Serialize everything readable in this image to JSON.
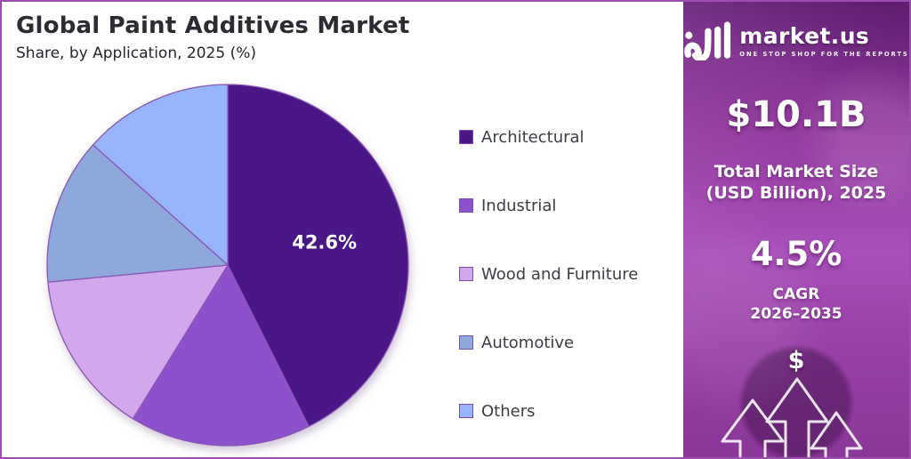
{
  "header": {
    "title": "Global Paint Additives Market",
    "subtitle": "Share, by Application, 2025 (%)"
  },
  "chart_data": {
    "type": "pie",
    "title": "Global Paint Additives Market Share, by Application, 2025 (%)",
    "unit": "%",
    "legend_position": "right",
    "slices": [
      {
        "label": "Architectural",
        "value": 42.6,
        "color": "#4A1787",
        "data_label": "42.6%"
      },
      {
        "label": "Industrial",
        "value": 16.2,
        "color": "#8B52CC",
        "data_label": ""
      },
      {
        "label": "Wood and Furniture",
        "value": 14.7,
        "color": "#D1A8EC",
        "data_label": ""
      },
      {
        "label": "Automotive",
        "value": 13.1,
        "color": "#8FA8DC",
        "data_label": ""
      },
      {
        "label": "Others",
        "value": 13.4,
        "color": "#97B3F9",
        "data_label": ""
      }
    ]
  },
  "sidebar": {
    "brand": {
      "name": "market.us",
      "tagline": "ONE STOP SHOP FOR THE REPORTS"
    },
    "market_size": {
      "value": "$10.1B",
      "label_line1": "Total Market Size",
      "label_line2": "(USD Billion), 2025"
    },
    "cagr": {
      "value": "4.5%",
      "label_line1": "CAGR",
      "label_line2": "2026–2035"
    },
    "dollar_symbol": "$"
  },
  "colors": {
    "frame_border": "#9a4fae",
    "pie_stroke": "#8a56b4",
    "panel_gradient_top": "#6d2680",
    "panel_gradient_mid": "#a94fba",
    "title_text": "#2b2b33"
  }
}
